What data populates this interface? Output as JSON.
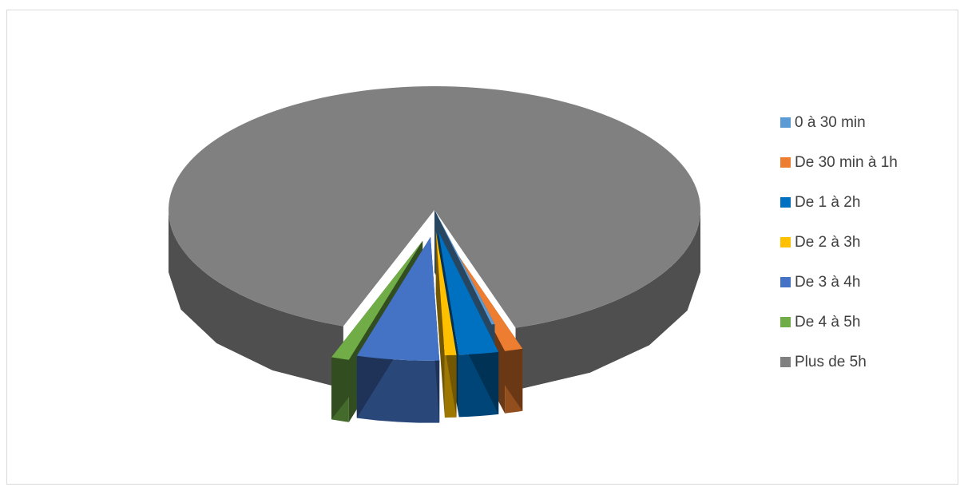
{
  "chart_data": {
    "type": "pie",
    "style": "3d-exploded",
    "title": "",
    "categories": [
      "0 à 30 min",
      "De 30 min à 1h",
      "De 1 à 2h",
      "De 2 à 3h",
      "De 3 à 4h",
      "De 4 à 5h",
      "Plus de 5h"
    ],
    "values": [
      0.2,
      1.1,
      2.4,
      0.7,
      5.0,
      1.1,
      89.5
    ],
    "unit": "%",
    "colors": [
      "#5b9bd5",
      "#ed7d31",
      "#0070c0",
      "#ffc000",
      "#4472c4",
      "#70ad47",
      "#808080"
    ],
    "exploded": [
      true,
      true,
      true,
      true,
      true,
      true,
      false
    ],
    "legend_position": "right"
  }
}
